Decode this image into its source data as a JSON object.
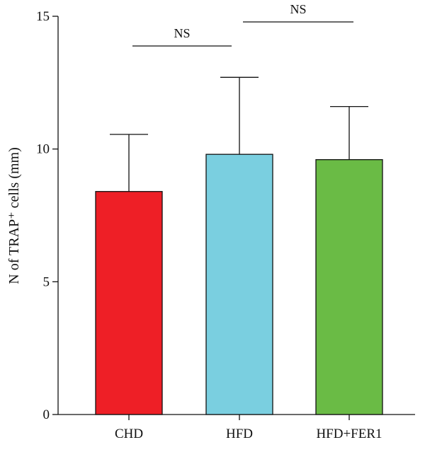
{
  "chart_data": {
    "type": "bar",
    "ylabel": "N of TRAP⁺ cells (mm)",
    "xlabel": "",
    "ylim": [
      0,
      15
    ],
    "yticks": [
      0,
      5,
      10,
      15
    ],
    "categories": [
      "CHD",
      "HFD",
      "HFD+FER1"
    ],
    "values": [
      8.4,
      9.8,
      9.6
    ],
    "error_upper": [
      2.15,
      2.9,
      2.0
    ],
    "colors": [
      "#ee1f26",
      "#7acfe0",
      "#6abb45"
    ],
    "grid": false,
    "significance": [
      {
        "from": "CHD",
        "to": "HFD",
        "label": "NS"
      },
      {
        "from": "HFD",
        "to": "HFD+FER1",
        "label": "NS"
      }
    ]
  }
}
